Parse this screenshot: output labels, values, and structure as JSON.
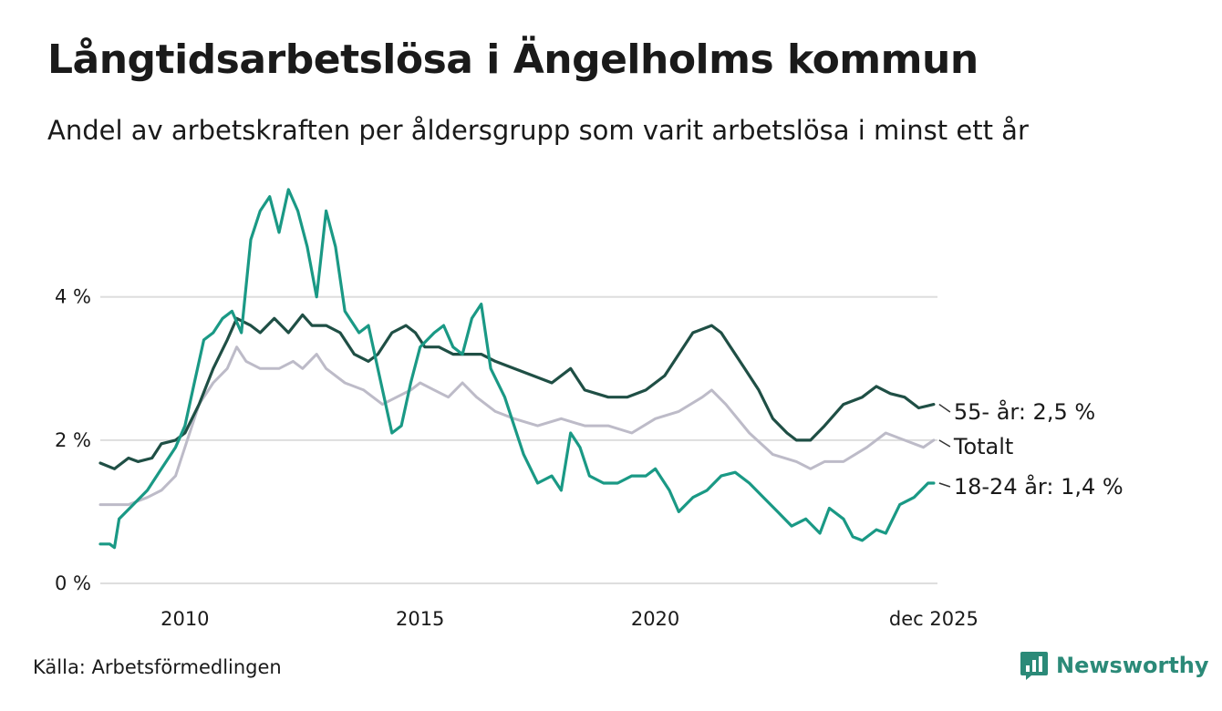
{
  "header": {
    "title": "Långtidsarbetslösa i Ängelholms kommun",
    "subtitle": "Andel av arbetskraften per åldersgrupp som varit arbetslösa i minst ett år"
  },
  "footer": {
    "source": "Källa: Arbetsförmedlingen",
    "brand": "Newsworthy"
  },
  "colors": {
    "age55": "#1f4f45",
    "total": "#bdbbc8",
    "age1824": "#1a9985",
    "grid": "#dedede",
    "brand": "#2b8a78"
  },
  "chart_data": {
    "type": "line",
    "title": "Långtidsarbetslösa i Ängelholms kommun",
    "xlabel": "",
    "ylabel": "",
    "xlim": [
      2008.2,
      2026.0
    ],
    "ylim": [
      0,
      5.6
    ],
    "grid": true,
    "x_ticks": [
      {
        "value": 2010,
        "label": "2010"
      },
      {
        "value": 2015,
        "label": "2015"
      },
      {
        "value": 2020,
        "label": "2020"
      },
      {
        "value": 2025.92,
        "label": "dec 2025"
      }
    ],
    "y_ticks": [
      {
        "value": 0,
        "label": "0 %"
      },
      {
        "value": 2,
        "label": "2 %"
      },
      {
        "value": 4,
        "label": "4 %"
      }
    ],
    "series": [
      {
        "name": "Totalt",
        "key": "total",
        "end_label": "Totalt",
        "points": [
          [
            2008.2,
            1.1
          ],
          [
            2008.8,
            1.1
          ],
          [
            2009.2,
            1.2
          ],
          [
            2009.5,
            1.3
          ],
          [
            2009.8,
            1.5
          ],
          [
            2010.0,
            1.9
          ],
          [
            2010.3,
            2.5
          ],
          [
            2010.6,
            2.8
          ],
          [
            2010.9,
            3.0
          ],
          [
            2011.1,
            3.3
          ],
          [
            2011.3,
            3.1
          ],
          [
            2011.6,
            3.0
          ],
          [
            2012.0,
            3.0
          ],
          [
            2012.3,
            3.1
          ],
          [
            2012.5,
            3.0
          ],
          [
            2012.8,
            3.2
          ],
          [
            2013.0,
            3.0
          ],
          [
            2013.4,
            2.8
          ],
          [
            2013.8,
            2.7
          ],
          [
            2014.2,
            2.5
          ],
          [
            2014.5,
            2.6
          ],
          [
            2014.8,
            2.7
          ],
          [
            2015.0,
            2.8
          ],
          [
            2015.3,
            2.7
          ],
          [
            2015.6,
            2.6
          ],
          [
            2015.9,
            2.8
          ],
          [
            2016.2,
            2.6
          ],
          [
            2016.6,
            2.4
          ],
          [
            2017.0,
            2.3
          ],
          [
            2017.5,
            2.2
          ],
          [
            2018.0,
            2.3
          ],
          [
            2018.5,
            2.2
          ],
          [
            2019.0,
            2.2
          ],
          [
            2019.5,
            2.1
          ],
          [
            2020.0,
            2.3
          ],
          [
            2020.5,
            2.4
          ],
          [
            2021.0,
            2.6
          ],
          [
            2021.2,
            2.7
          ],
          [
            2021.5,
            2.5
          ],
          [
            2022.0,
            2.1
          ],
          [
            2022.5,
            1.8
          ],
          [
            2023.0,
            1.7
          ],
          [
            2023.3,
            1.6
          ],
          [
            2023.6,
            1.7
          ],
          [
            2024.0,
            1.7
          ],
          [
            2024.5,
            1.9
          ],
          [
            2024.9,
            2.1
          ],
          [
            2025.3,
            2.0
          ],
          [
            2025.7,
            1.9
          ],
          [
            2025.92,
            2.0
          ]
        ]
      },
      {
        "name": "55- år",
        "key": "age55",
        "end_value": 2.5,
        "end_label": "55- år: 2,5 %",
        "points": [
          [
            2008.2,
            1.68
          ],
          [
            2008.5,
            1.6
          ],
          [
            2008.8,
            1.75
          ],
          [
            2009.0,
            1.7
          ],
          [
            2009.3,
            1.75
          ],
          [
            2009.5,
            1.95
          ],
          [
            2009.8,
            2.0
          ],
          [
            2010.0,
            2.1
          ],
          [
            2010.3,
            2.5
          ],
          [
            2010.6,
            3.0
          ],
          [
            2010.9,
            3.4
          ],
          [
            2011.1,
            3.7
          ],
          [
            2011.4,
            3.6
          ],
          [
            2011.6,
            3.5
          ],
          [
            2011.9,
            3.7
          ],
          [
            2012.2,
            3.5
          ],
          [
            2012.5,
            3.75
          ],
          [
            2012.7,
            3.6
          ],
          [
            2013.0,
            3.6
          ],
          [
            2013.3,
            3.5
          ],
          [
            2013.6,
            3.2
          ],
          [
            2013.9,
            3.1
          ],
          [
            2014.1,
            3.2
          ],
          [
            2014.4,
            3.5
          ],
          [
            2014.7,
            3.6
          ],
          [
            2014.9,
            3.5
          ],
          [
            2015.1,
            3.3
          ],
          [
            2015.4,
            3.3
          ],
          [
            2015.7,
            3.2
          ],
          [
            2016.0,
            3.2
          ],
          [
            2016.3,
            3.2
          ],
          [
            2016.6,
            3.1
          ],
          [
            2017.0,
            3.0
          ],
          [
            2017.4,
            2.9
          ],
          [
            2017.8,
            2.8
          ],
          [
            2018.2,
            3.0
          ],
          [
            2018.5,
            2.7
          ],
          [
            2019.0,
            2.6
          ],
          [
            2019.4,
            2.6
          ],
          [
            2019.8,
            2.7
          ],
          [
            2020.2,
            2.9
          ],
          [
            2020.5,
            3.2
          ],
          [
            2020.8,
            3.5
          ],
          [
            2021.2,
            3.6
          ],
          [
            2021.4,
            3.5
          ],
          [
            2021.6,
            3.3
          ],
          [
            2021.9,
            3.0
          ],
          [
            2022.2,
            2.7
          ],
          [
            2022.5,
            2.3
          ],
          [
            2022.8,
            2.1
          ],
          [
            2023.0,
            2.0
          ],
          [
            2023.3,
            2.0
          ],
          [
            2023.6,
            2.2
          ],
          [
            2024.0,
            2.5
          ],
          [
            2024.4,
            2.6
          ],
          [
            2024.7,
            2.75
          ],
          [
            2025.0,
            2.65
          ],
          [
            2025.3,
            2.6
          ],
          [
            2025.6,
            2.45
          ],
          [
            2025.92,
            2.5
          ]
        ]
      },
      {
        "name": "18-24 år",
        "key": "age1824",
        "end_value": 1.4,
        "end_label": "18-24 år: 1,4 %",
        "points": [
          [
            2008.2,
            0.55
          ],
          [
            2008.4,
            0.55
          ],
          [
            2008.5,
            0.5
          ],
          [
            2008.6,
            0.9
          ],
          [
            2008.9,
            1.1
          ],
          [
            2009.2,
            1.3
          ],
          [
            2009.5,
            1.6
          ],
          [
            2009.8,
            1.9
          ],
          [
            2010.0,
            2.2
          ],
          [
            2010.2,
            2.8
          ],
          [
            2010.4,
            3.4
          ],
          [
            2010.6,
            3.5
          ],
          [
            2010.8,
            3.7
          ],
          [
            2011.0,
            3.8
          ],
          [
            2011.2,
            3.5
          ],
          [
            2011.4,
            4.8
          ],
          [
            2011.6,
            5.2
          ],
          [
            2011.8,
            5.4
          ],
          [
            2012.0,
            4.9
          ],
          [
            2012.2,
            5.5
          ],
          [
            2012.4,
            5.2
          ],
          [
            2012.6,
            4.7
          ],
          [
            2012.8,
            4.0
          ],
          [
            2013.0,
            5.2
          ],
          [
            2013.2,
            4.7
          ],
          [
            2013.4,
            3.8
          ],
          [
            2013.7,
            3.5
          ],
          [
            2013.9,
            3.6
          ],
          [
            2014.1,
            3.0
          ],
          [
            2014.4,
            2.1
          ],
          [
            2014.6,
            2.2
          ],
          [
            2014.8,
            2.8
          ],
          [
            2015.0,
            3.3
          ],
          [
            2015.3,
            3.5
          ],
          [
            2015.5,
            3.6
          ],
          [
            2015.7,
            3.3
          ],
          [
            2015.9,
            3.2
          ],
          [
            2016.1,
            3.7
          ],
          [
            2016.3,
            3.9
          ],
          [
            2016.5,
            3.0
          ],
          [
            2016.8,
            2.6
          ],
          [
            2017.0,
            2.2
          ],
          [
            2017.2,
            1.8
          ],
          [
            2017.5,
            1.4
          ],
          [
            2017.8,
            1.5
          ],
          [
            2018.0,
            1.3
          ],
          [
            2018.2,
            2.1
          ],
          [
            2018.4,
            1.9
          ],
          [
            2018.6,
            1.5
          ],
          [
            2018.9,
            1.4
          ],
          [
            2019.2,
            1.4
          ],
          [
            2019.5,
            1.5
          ],
          [
            2019.8,
            1.5
          ],
          [
            2020.0,
            1.6
          ],
          [
            2020.3,
            1.3
          ],
          [
            2020.5,
            1.0
          ],
          [
            2020.8,
            1.2
          ],
          [
            2021.1,
            1.3
          ],
          [
            2021.4,
            1.5
          ],
          [
            2021.7,
            1.55
          ],
          [
            2022.0,
            1.4
          ],
          [
            2022.3,
            1.2
          ],
          [
            2022.6,
            1.0
          ],
          [
            2022.9,
            0.8
          ],
          [
            2023.2,
            0.9
          ],
          [
            2023.5,
            0.7
          ],
          [
            2023.7,
            1.05
          ],
          [
            2024.0,
            0.9
          ],
          [
            2024.2,
            0.65
          ],
          [
            2024.4,
            0.6
          ],
          [
            2024.7,
            0.75
          ],
          [
            2024.9,
            0.7
          ],
          [
            2025.2,
            1.1
          ],
          [
            2025.5,
            1.2
          ],
          [
            2025.8,
            1.4
          ],
          [
            2025.92,
            1.4
          ]
        ]
      }
    ]
  }
}
